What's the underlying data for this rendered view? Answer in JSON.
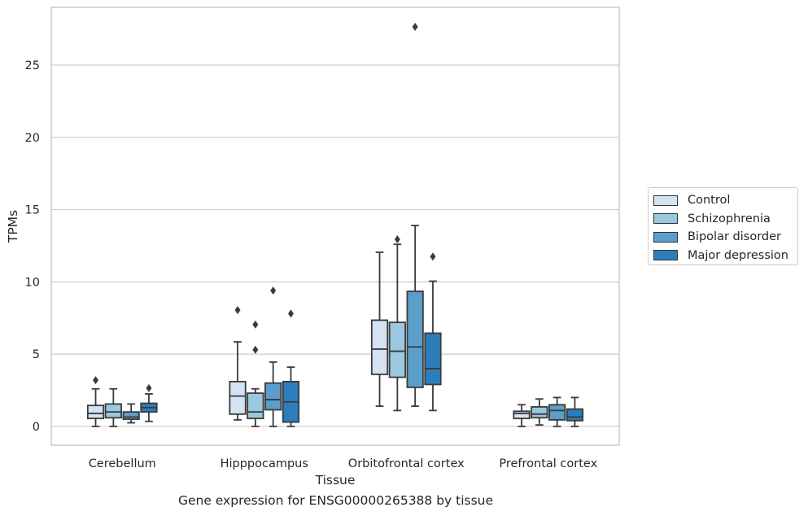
{
  "chart_data": {
    "type": "box",
    "caption": "Gene expression for ENSG00000265388 by tissue",
    "xlabel": "Tissue",
    "ylabel": "TPMs",
    "ylim": [
      -1.3,
      29
    ],
    "yticks": [
      0,
      5,
      10,
      15,
      20,
      25
    ],
    "grid": true,
    "legend_position": "right",
    "categories": [
      "Cerebellum",
      "Hipppocampus",
      "Orbitofrontal cortex",
      "Prefrontal cortex"
    ],
    "series": [
      {
        "name": "Control",
        "color": "#d3e3f3",
        "boxes": [
          {
            "whislo": 0.0,
            "q1": 0.55,
            "med": 0.9,
            "q3": 1.45,
            "whishi": 2.6,
            "fliers": [
              3.2
            ]
          },
          {
            "whislo": 0.45,
            "q1": 0.85,
            "med": 2.1,
            "q3": 3.1,
            "whishi": 5.85,
            "fliers": [
              8.05
            ]
          },
          {
            "whislo": 1.4,
            "q1": 3.6,
            "med": 5.35,
            "q3": 7.35,
            "whishi": 12.05,
            "fliers": []
          },
          {
            "whislo": 0.0,
            "q1": 0.55,
            "med": 0.9,
            "q3": 1.05,
            "whishi": 1.5,
            "fliers": []
          }
        ]
      },
      {
        "name": "Schizophrenia",
        "color": "#9ac8e0",
        "boxes": [
          {
            "whislo": 0.0,
            "q1": 0.6,
            "med": 1.0,
            "q3": 1.55,
            "whishi": 2.6,
            "fliers": []
          },
          {
            "whislo": 0.0,
            "q1": 0.55,
            "med": 1.0,
            "q3": 2.3,
            "whishi": 2.6,
            "fliers": [
              5.3,
              7.05
            ]
          },
          {
            "whislo": 1.1,
            "q1": 3.4,
            "med": 5.2,
            "q3": 7.2,
            "whishi": 12.6,
            "fliers": [
              12.95
            ]
          },
          {
            "whislo": 0.1,
            "q1": 0.6,
            "med": 0.85,
            "q3": 1.35,
            "whishi": 1.9,
            "fliers": []
          }
        ]
      },
      {
        "name": "Bipolar disorder",
        "color": "#5a9ec9",
        "boxes": [
          {
            "whislo": 0.25,
            "q1": 0.5,
            "med": 0.65,
            "q3": 1.0,
            "whishi": 1.55,
            "fliers": []
          },
          {
            "whislo": 0.0,
            "q1": 1.15,
            "med": 1.85,
            "q3": 3.0,
            "whishi": 4.45,
            "fliers": [
              9.4
            ]
          },
          {
            "whislo": 1.4,
            "q1": 2.7,
            "med": 5.5,
            "q3": 9.35,
            "whishi": 13.9,
            "fliers": [
              27.65
            ]
          },
          {
            "whislo": 0.0,
            "q1": 0.45,
            "med": 1.1,
            "q3": 1.5,
            "whishi": 2.0,
            "fliers": []
          }
        ]
      },
      {
        "name": "Major depression",
        "color": "#2d7dbb",
        "boxes": [
          {
            "whislo": 0.35,
            "q1": 1.0,
            "med": 1.3,
            "q3": 1.6,
            "whishi": 2.25,
            "fliers": [
              2.65
            ]
          },
          {
            "whislo": 0.0,
            "q1": 0.3,
            "med": 1.7,
            "q3": 3.1,
            "whishi": 4.1,
            "fliers": [
              7.8
            ]
          },
          {
            "whislo": 1.1,
            "q1": 2.9,
            "med": 4.0,
            "q3": 6.45,
            "whishi": 10.05,
            "fliers": [
              11.75
            ]
          },
          {
            "whislo": 0.0,
            "q1": 0.4,
            "med": 0.65,
            "q3": 1.2,
            "whishi": 2.0,
            "fliers": []
          }
        ]
      }
    ]
  }
}
